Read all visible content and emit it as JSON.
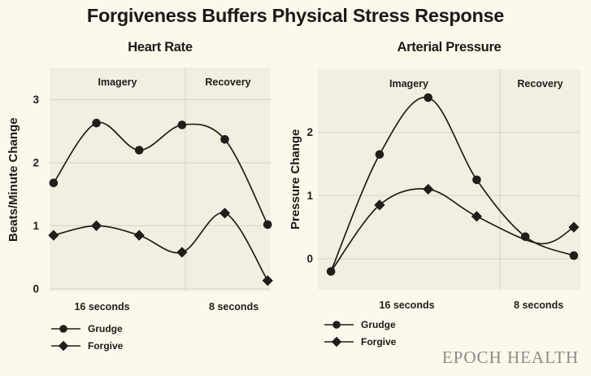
{
  "page": {
    "title": "Forgiveness Buffers Physical Stress Response",
    "brand": "EPOCH HEALTH",
    "colors": {
      "background": "#fdf8ec",
      "plot_background": "#f2efe2",
      "gridline": "#dcd8c8",
      "ink": "#211e1a",
      "brand_text": "#8d8c87"
    }
  },
  "chart_data": [
    {
      "type": "line",
      "title": "Heart Rate",
      "ylabel": "Beats/Minute Change",
      "section_labels": [
        "Imagery",
        "Recovery"
      ],
      "x_axis_labels": [
        "16 seconds",
        "8 seconds"
      ],
      "yticks": [
        0,
        1,
        2,
        3
      ],
      "ylim": [
        -0.04,
        3.51
      ],
      "x_range": [
        0,
        5
      ],
      "grid": true,
      "legend_position": "bottom-left",
      "series": [
        {
          "name": "Grudge",
          "marker": "circle",
          "x": [
            0,
            1,
            2,
            3,
            4,
            5
          ],
          "values": [
            1.68,
            2.63,
            2.2,
            2.6,
            2.37,
            1.02
          ]
        },
        {
          "name": "Forgive",
          "marker": "diamond",
          "x": [
            0,
            1,
            2,
            3,
            4,
            5
          ],
          "values": [
            0.85,
            1.0,
            0.85,
            0.58,
            1.2,
            0.13
          ]
        }
      ],
      "legend": [
        "Grudge",
        "Forgive"
      ]
    },
    {
      "type": "line",
      "title": "Arterial Pressure",
      "ylabel": "Pressure Change",
      "section_labels": [
        "Imagery",
        "Recovery"
      ],
      "x_axis_labels": [
        "16 seconds",
        "8 seconds"
      ],
      "yticks": [
        0,
        1,
        2
      ],
      "ylim": [
        -0.49,
        3.0
      ],
      "x_range": [
        0,
        5
      ],
      "grid": true,
      "legend_position": "bottom-left",
      "series": [
        {
          "name": "Grudge",
          "marker": "circle",
          "x": [
            0,
            1,
            2,
            3,
            4,
            5
          ],
          "values": [
            -0.2,
            1.65,
            2.55,
            1.25,
            0.35,
            0.05
          ]
        },
        {
          "name": "Forgive",
          "marker": "diamond",
          "x": [
            0,
            1,
            2,
            3,
            4.3,
            5
          ],
          "values": [
            -0.2,
            0.85,
            1.1,
            0.67,
            0.24,
            0.5
          ],
          "marker_skip": [
            0,
            4
          ]
        }
      ],
      "legend": [
        "Grudge",
        "Forgive"
      ]
    }
  ]
}
